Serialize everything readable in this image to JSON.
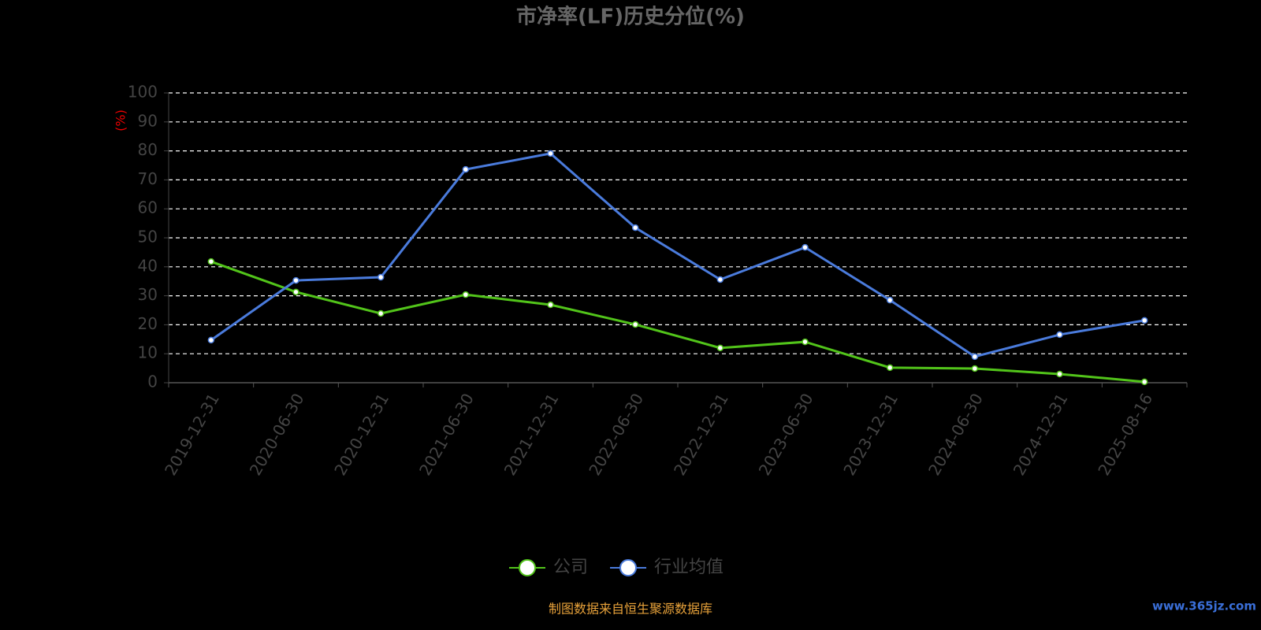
{
  "chart_data": {
    "type": "line",
    "title": "市净率(LF)历史分位(%)",
    "y_label": "(%)",
    "categories": [
      "2019-12-31",
      "2020-06-30",
      "2020-12-31",
      "2021-06-30",
      "2021-12-31",
      "2022-06-30",
      "2022-12-31",
      "2023-06-30",
      "2023-12-31",
      "2024-06-30",
      "2024-12-31",
      "2025-08-16"
    ],
    "series": [
      {
        "name": "公司",
        "color": "#52c41a",
        "values": [
          41.8,
          31.3,
          23.9,
          30.4,
          26.9,
          20.1,
          12.0,
          14.1,
          5.2,
          4.9,
          3.0,
          0.3
        ]
      },
      {
        "name": "行业均值",
        "color": "#4a7bdc",
        "values": [
          14.7,
          35.3,
          36.4,
          73.6,
          79.1,
          53.5,
          35.6,
          46.7,
          28.5,
          9.0,
          16.6,
          21.5
        ]
      }
    ],
    "ylim": [
      0,
      100
    ],
    "yticks": [
      0,
      10,
      20,
      30,
      40,
      50,
      60,
      70,
      80,
      90,
      100
    ],
    "grid": true,
    "source": "制图数据来自恒生聚源数据库",
    "watermark": "www.365jz.com"
  }
}
